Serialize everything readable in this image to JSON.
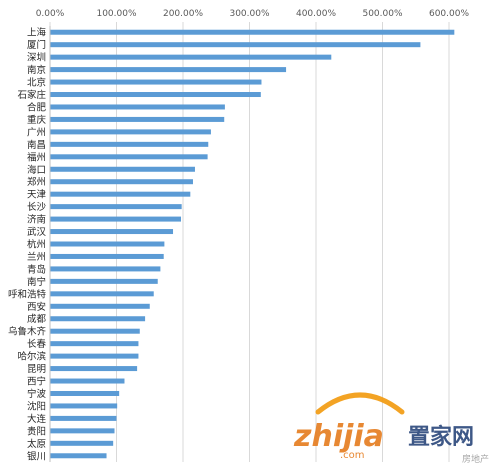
{
  "chart_data": {
    "type": "bar",
    "orientation": "horizontal",
    "title": "",
    "xlabel": "",
    "ylabel": "",
    "xlim": [
      0,
      650
    ],
    "x_ticks": [
      "0.00%",
      "100.00%",
      "200.00%",
      "300.00%",
      "400.00%",
      "500.00%",
      "600.00%"
    ],
    "x_tick_values": [
      0,
      100,
      200,
      300,
      400,
      500,
      600
    ],
    "grid": true,
    "bar_color": "#5b9bd5",
    "categories": [
      "上海",
      "厦门",
      "深圳",
      "南京",
      "北京",
      "石家庄",
      "合肥",
      "重庆",
      "广州",
      "南昌",
      "福州",
      "海口",
      "郑州",
      "天津",
      "长沙",
      "济南",
      "武汉",
      "杭州",
      "兰州",
      "青岛",
      "南宁",
      "呼和浩特",
      "西安",
      "成都",
      "乌鲁木齐",
      "长春",
      "哈尔滨",
      "昆明",
      "西宁",
      "宁波",
      "沈阳",
      "大连",
      "贵阳",
      "太原",
      "银川"
    ],
    "values": [
      608,
      557,
      423,
      355,
      318,
      317,
      263,
      262,
      242,
      238,
      237,
      218,
      215,
      211,
      198,
      197,
      185,
      172,
      171,
      166,
      162,
      156,
      150,
      143,
      135,
      133,
      133,
      131,
      112,
      104,
      101,
      100,
      97,
      95,
      85
    ]
  },
  "watermark": {
    "brand": "zhijia",
    "brand_cn": "置家网",
    "domain_text": ".com",
    "tag": "房地产"
  }
}
